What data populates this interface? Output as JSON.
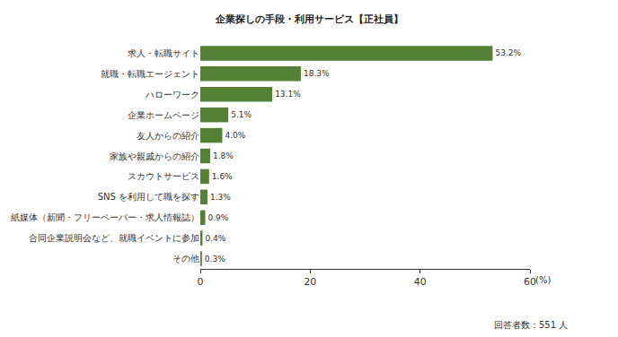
{
  "chart_data": {
    "type": "bar",
    "orientation": "horizontal",
    "title": "企業探しの手段・利用サービス【正社員】",
    "categories": [
      "求人・転職サイト",
      "就職・転職エージェント",
      "ハローワーク",
      "企業ホームページ",
      "友人からの紹介",
      "家族や親戚からの紹介",
      "スカウトサービス",
      "SNS を利用して職を探す",
      "紙媒体（新聞・フリーペーパー・求人情報誌）",
      "合同企業説明会など、就職イベントに参加",
      "その他"
    ],
    "values": [
      53.2,
      18.3,
      13.1,
      5.1,
      4.0,
      1.8,
      1.6,
      1.3,
      0.9,
      0.4,
      0.3
    ],
    "value_labels": [
      "53.2%",
      "18.3%",
      "13.1%",
      "5.1%",
      "4.0%",
      "1.8%",
      "1.6%",
      "1.3%",
      "0.9%",
      "0.4%",
      "0.3%"
    ],
    "data_labels": true,
    "color": "#548235",
    "xlabel": "(%)",
    "xlim": [
      0,
      60
    ],
    "xticks": [
      0,
      20,
      40,
      60
    ],
    "grid": false,
    "annotations": [
      "回答者数：551 人"
    ]
  }
}
